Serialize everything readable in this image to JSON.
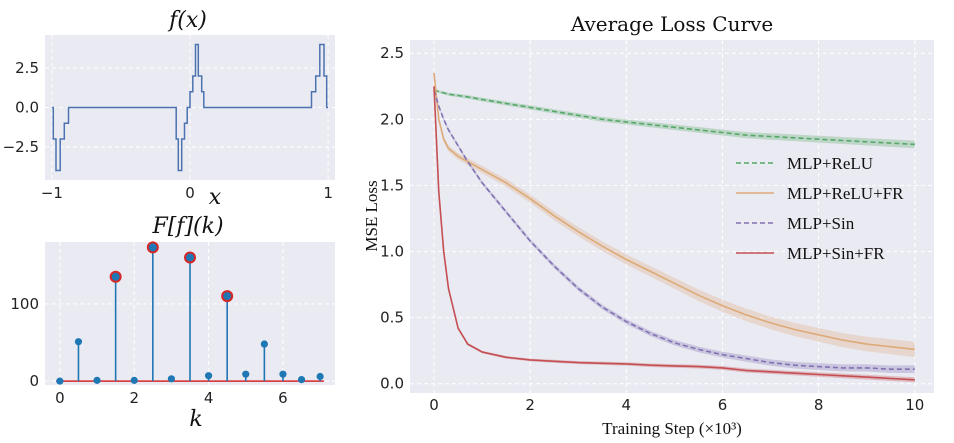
{
  "colors": {
    "panel_bg": "#EAEAF2",
    "grid": "#ffffff",
    "fx_line": "#4C72B0",
    "stem": "#1F77B4",
    "highlight_edge": "#D62728",
    "relu": "#55A868",
    "relu_fr": "#DDAA77",
    "sin": "#8172B2",
    "sin_fr": "#C44E52"
  },
  "chart_data": [
    {
      "type": "line",
      "title": "f(x)",
      "xlabel": "x",
      "ylabel": "",
      "xlim": [
        -1.05,
        1.05
      ],
      "ylim": [
        -4.6,
        4.6
      ],
      "xticks": [
        -1,
        0,
        1
      ],
      "xtick_labels": [
        "−1",
        "0",
        "1"
      ],
      "yticks": [
        2.5,
        0.0,
        -2.5
      ],
      "ytick_labels": [
        "2.5",
        "0.0",
        "−2.5"
      ],
      "x": [
        -1.0,
        -0.99,
        -0.99,
        -0.97,
        -0.97,
        -0.94,
        -0.94,
        -0.91,
        -0.91,
        -0.88,
        -0.88,
        -0.6,
        -0.3,
        -0.1,
        -0.1,
        -0.085,
        -0.085,
        -0.06,
        -0.06,
        -0.04,
        -0.04,
        -0.02,
        -0.02,
        0.0,
        0.0,
        0.02,
        0.02,
        0.04,
        0.04,
        0.06,
        0.06,
        0.085,
        0.085,
        0.1,
        0.1,
        0.3,
        0.6,
        0.88,
        0.88,
        0.91,
        0.91,
        0.94,
        0.94,
        0.97,
        0.97,
        0.99,
        0.99,
        1.0
      ],
      "y": [
        0,
        0,
        -2,
        -2,
        -4,
        -4,
        -2,
        -2,
        -1,
        -1,
        0,
        0,
        0,
        0,
        -2,
        -2,
        -4,
        -4,
        -2,
        -2,
        -1,
        -1,
        0,
        0,
        1,
        1,
        2,
        2,
        4,
        4,
        2,
        2,
        1,
        1,
        0,
        0,
        0,
        0,
        1,
        1,
        2,
        2,
        4,
        4,
        2,
        2,
        0,
        0
      ]
    },
    {
      "type": "stem",
      "title": "F[f](k)",
      "xlabel": "k",
      "ylabel": "",
      "xlim": [
        -0.4,
        7.4
      ],
      "ylim": [
        -5,
        180
      ],
      "xticks": [
        0,
        2,
        4,
        6
      ],
      "yticks": [
        0,
        100
      ],
      "x": [
        0,
        0.5,
        1,
        1.5,
        2,
        2.5,
        3,
        3.5,
        4,
        4.5,
        5,
        5.5,
        6,
        6.5,
        7
      ],
      "values": [
        0,
        51,
        1,
        135,
        1,
        173,
        3,
        160,
        7,
        110,
        9,
        48,
        9,
        2,
        6
      ],
      "highlighted": [
        1.5,
        2.5,
        3.5,
        4.5
      ]
    },
    {
      "type": "line",
      "title": "Average Loss Curve",
      "xlabel": "Training Step (×10³)",
      "ylabel": "MSE Loss",
      "xlim": [
        -0.5,
        10.4
      ],
      "ylim": [
        -0.07,
        2.6
      ],
      "xticks": [
        0,
        2,
        4,
        6,
        8,
        10
      ],
      "yticks": [
        0.0,
        0.5,
        1.0,
        1.5,
        2.0,
        2.5
      ],
      "ytick_labels": [
        "0.0",
        "0.5",
        "1.0",
        "1.5",
        "2.0",
        "2.5"
      ],
      "legend_position": "center-right",
      "x": [
        0,
        0.1,
        0.2,
        0.3,
        0.5,
        0.7,
        1,
        1.5,
        2,
        2.5,
        3,
        3.5,
        4,
        4.5,
        5,
        5.5,
        6,
        6.5,
        7,
        7.5,
        8,
        8.5,
        9,
        9.5,
        10
      ],
      "series": [
        {
          "name": "MLP+ReLU",
          "style": "dashed",
          "band": 0.03,
          "values": [
            2.22,
            2.21,
            2.2,
            2.19,
            2.18,
            2.17,
            2.15,
            2.12,
            2.09,
            2.06,
            2.03,
            2.0,
            1.98,
            1.96,
            1.94,
            1.92,
            1.9,
            1.88,
            1.87,
            1.86,
            1.85,
            1.84,
            1.83,
            1.82,
            1.81
          ]
        },
        {
          "name": "MLP+ReLU+FR",
          "style": "solid",
          "band": 0.06,
          "values": [
            2.35,
            2.0,
            1.85,
            1.78,
            1.72,
            1.68,
            1.62,
            1.52,
            1.4,
            1.27,
            1.15,
            1.04,
            0.94,
            0.85,
            0.76,
            0.67,
            0.59,
            0.52,
            0.46,
            0.41,
            0.37,
            0.33,
            0.3,
            0.28,
            0.26
          ]
        },
        {
          "name": "MLP+Sin",
          "style": "dashed",
          "band": 0.03,
          "values": [
            2.22,
            2.1,
            2.0,
            1.92,
            1.8,
            1.68,
            1.52,
            1.3,
            1.08,
            0.89,
            0.72,
            0.58,
            0.47,
            0.38,
            0.31,
            0.26,
            0.22,
            0.19,
            0.16,
            0.14,
            0.13,
            0.12,
            0.12,
            0.11,
            0.11
          ]
        },
        {
          "name": "MLP+Sin+FR",
          "style": "solid",
          "band": 0.02,
          "values": [
            2.25,
            1.45,
            1.0,
            0.72,
            0.42,
            0.3,
            0.24,
            0.2,
            0.18,
            0.17,
            0.16,
            0.155,
            0.15,
            0.14,
            0.135,
            0.13,
            0.12,
            0.1,
            0.09,
            0.08,
            0.07,
            0.06,
            0.05,
            0.04,
            0.03
          ]
        }
      ]
    }
  ]
}
